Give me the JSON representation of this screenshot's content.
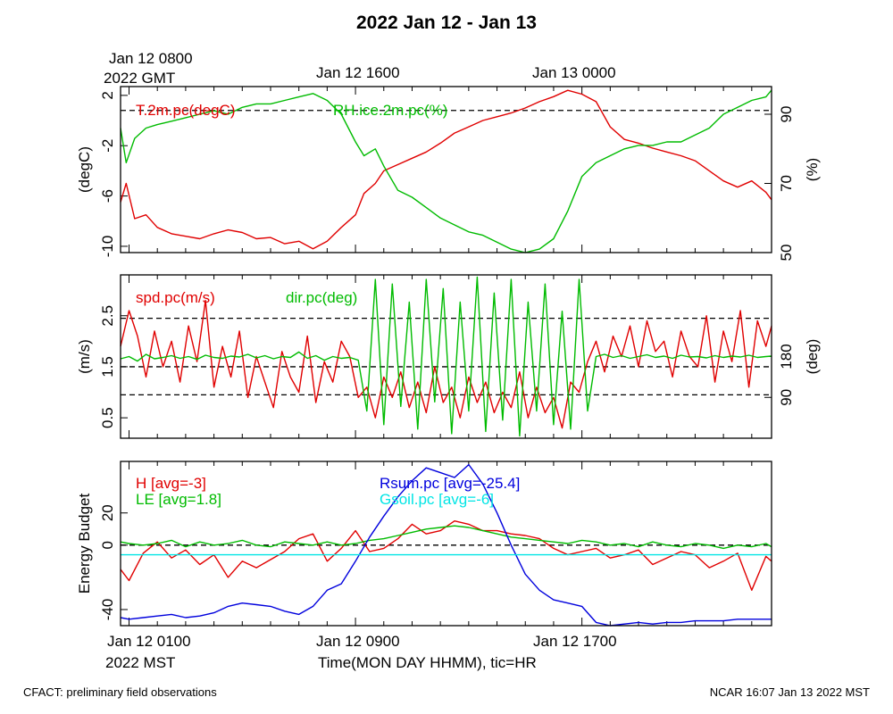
{
  "title": "2022 Jan 12 - Jan 13",
  "top_axis": {
    "first_label": "Jan 12 0800",
    "first_sublabel": "2022 GMT",
    "labels": [
      "Jan 12 1600",
      "Jan 13 0000"
    ]
  },
  "bottom_axis": {
    "labels": [
      "Jan 12 0100",
      "Jan 12 0900",
      "Jan 12 1700"
    ],
    "sublabel": "2022 MST",
    "xlabel": "Time(MON DAY HHMM), tic=HR"
  },
  "footer": {
    "left": "CFACT: preliminary field observations",
    "right": "NCAR 16:07 Jan 13 2022 MST"
  },
  "colors": {
    "red": "#e00000",
    "green": "#00bb00",
    "blue": "#0000dd",
    "cyan": "#00e5e5"
  },
  "chart_data": [
    {
      "type": "line",
      "title": "T.2m.pc / RH.ice.2m.pc",
      "x_unit": "hours since Jan 12 0000 MST",
      "xlim": [
        0.7,
        23.7
      ],
      "ylabel": "(degC)",
      "ylim": [
        -10.5,
        2.7
      ],
      "yticks": [
        -10,
        -6,
        -2,
        2
      ],
      "ylabel_right": "(%)",
      "ylim_right": [
        50,
        98
      ],
      "yticks_right": [
        50,
        70,
        90
      ],
      "reference_lines_left": [
        0.8
      ],
      "series": [
        {
          "name": "T.2m.pc(degC)",
          "label": "T.2m.pc(degC)",
          "color": "#e00000",
          "axis": "left",
          "x": [
            0.7,
            0.9,
            1.2,
            1.6,
            2.0,
            2.5,
            3.0,
            3.5,
            4.0,
            4.5,
            5.0,
            5.5,
            6.0,
            6.5,
            7.0,
            7.5,
            8.0,
            8.5,
            9.0,
            9.3,
            9.7,
            10.0,
            10.5,
            11.0,
            11.5,
            12.0,
            12.5,
            13.0,
            13.5,
            14.0,
            14.5,
            15.0,
            15.5,
            16.0,
            16.5,
            17.0,
            17.5,
            18.0,
            18.5,
            19.0,
            19.5,
            20.0,
            20.5,
            21.0,
            21.5,
            22.0,
            22.5,
            23.0,
            23.5,
            23.7
          ],
          "values": [
            -6.5,
            -5.0,
            -7.8,
            -7.5,
            -8.5,
            -9.0,
            -9.2,
            -9.4,
            -9.0,
            -8.7,
            -8.9,
            -9.4,
            -9.3,
            -9.8,
            -9.6,
            -10.2,
            -9.6,
            -8.5,
            -7.5,
            -5.8,
            -5.0,
            -4.0,
            -3.5,
            -3.0,
            -2.5,
            -1.8,
            -1.0,
            -0.5,
            0.0,
            0.3,
            0.6,
            1.0,
            1.5,
            1.9,
            2.4,
            2.1,
            1.5,
            -0.5,
            -1.5,
            -1.8,
            -2.2,
            -2.5,
            -2.8,
            -3.2,
            -4.0,
            -4.8,
            -5.3,
            -4.8,
            -5.7,
            -6.3
          ]
        },
        {
          "name": "RH.ice.2m.pc(%)",
          "label": "RH.ice.2m.pc(%)",
          "color": "#00bb00",
          "axis": "right",
          "x": [
            0.7,
            0.9,
            1.2,
            1.6,
            2.0,
            2.5,
            3.0,
            3.5,
            4.0,
            4.5,
            5.0,
            5.5,
            6.0,
            6.5,
            7.0,
            7.5,
            8.0,
            8.5,
            9.0,
            9.3,
            9.7,
            10.0,
            10.5,
            11.0,
            11.5,
            12.0,
            12.5,
            13.0,
            13.5,
            14.0,
            14.5,
            15.0,
            15.5,
            16.0,
            16.5,
            17.0,
            17.5,
            18.0,
            18.5,
            19.0,
            19.5,
            20.0,
            20.5,
            21.0,
            21.5,
            22.0,
            22.5,
            23.0,
            23.5,
            23.7
          ],
          "values": [
            86,
            76,
            83,
            86,
            87,
            88,
            89,
            90,
            91,
            90,
            92,
            93,
            93,
            94,
            95,
            96,
            94,
            90,
            82,
            78,
            80,
            75,
            68,
            66,
            63,
            60,
            58,
            56,
            55,
            53,
            51,
            50,
            51,
            54,
            62,
            72,
            76,
            78,
            80,
            81,
            81,
            82,
            82,
            84,
            86,
            90,
            92,
            94,
            95,
            97
          ]
        }
      ]
    },
    {
      "type": "line",
      "title": "spd.pc / dir.pc",
      "x_unit": "hours since Jan 12 0000 MST",
      "xlim": [
        0.7,
        23.7
      ],
      "ylabel": "(m/s)",
      "ylim": [
        0.1,
        3.3
      ],
      "yticks": [
        0.5,
        1.5,
        2.5
      ],
      "ylabel_right": "(deg)",
      "ylim_right": [
        0,
        360
      ],
      "yticks_right": [
        90,
        180
      ],
      "reference_lines_left": [
        0.95,
        1.5,
        2.45
      ],
      "series": [
        {
          "name": "spd.pc(m/s)",
          "label": "spd.pc(m/s)",
          "color": "#e00000",
          "axis": "left",
          "x": [
            0.7,
            1.0,
            1.3,
            1.6,
            1.9,
            2.2,
            2.5,
            2.8,
            3.1,
            3.4,
            3.7,
            4.0,
            4.3,
            4.6,
            4.9,
            5.2,
            5.5,
            5.8,
            6.1,
            6.4,
            6.7,
            7.0,
            7.3,
            7.6,
            7.9,
            8.2,
            8.5,
            8.8,
            9.1,
            9.4,
            9.7,
            10.0,
            10.3,
            10.6,
            10.9,
            11.2,
            11.5,
            11.8,
            12.1,
            12.4,
            12.7,
            13.0,
            13.3,
            13.6,
            13.9,
            14.2,
            14.5,
            14.8,
            15.1,
            15.4,
            15.7,
            16.0,
            16.3,
            16.6,
            16.9,
            17.2,
            17.5,
            17.8,
            18.1,
            18.4,
            18.7,
            19.0,
            19.3,
            19.6,
            19.9,
            20.2,
            20.5,
            20.8,
            21.1,
            21.4,
            21.7,
            22.0,
            22.3,
            22.6,
            22.9,
            23.2,
            23.5,
            23.7
          ],
          "values": [
            1.9,
            2.6,
            2.1,
            1.3,
            2.2,
            1.5,
            2.0,
            1.2,
            2.3,
            1.6,
            2.8,
            1.1,
            1.9,
            1.3,
            2.2,
            0.9,
            1.7,
            1.2,
            0.7,
            1.8,
            1.3,
            1.0,
            2.1,
            0.8,
            1.6,
            1.2,
            2.0,
            1.7,
            0.9,
            1.1,
            0.5,
            1.3,
            0.9,
            1.4,
            0.7,
            1.2,
            0.6,
            1.5,
            0.8,
            1.1,
            0.5,
            1.3,
            0.8,
            1.2,
            0.6,
            1.0,
            0.7,
            1.4,
            0.5,
            1.1,
            0.6,
            0.9,
            0.3,
            1.2,
            1.0,
            1.6,
            2.0,
            1.4,
            2.1,
            1.7,
            2.3,
            1.5,
            2.4,
            1.8,
            2.0,
            1.3,
            2.2,
            1.7,
            1.5,
            2.5,
            1.2,
            2.2,
            1.6,
            2.6,
            1.1,
            2.4,
            1.9,
            2.3
          ]
        },
        {
          "name": "dir.pc(deg)",
          "label": "dir.pc(deg)",
          "color": "#00bb00",
          "axis": "right",
          "x": [
            0.7,
            1.0,
            1.3,
            1.6,
            1.9,
            2.2,
            2.5,
            2.8,
            3.1,
            3.4,
            3.7,
            4.0,
            4.3,
            4.6,
            4.9,
            5.2,
            5.5,
            5.8,
            6.1,
            6.4,
            6.7,
            7.0,
            7.3,
            7.6,
            7.9,
            8.2,
            8.5,
            8.8,
            9.1,
            9.4,
            9.7,
            10.0,
            10.3,
            10.6,
            10.9,
            11.2,
            11.5,
            11.8,
            12.1,
            12.4,
            12.7,
            13.0,
            13.3,
            13.6,
            13.9,
            14.2,
            14.5,
            14.8,
            15.1,
            15.4,
            15.7,
            16.0,
            16.3,
            16.6,
            16.9,
            17.2,
            17.5,
            17.8,
            18.1,
            18.4,
            18.7,
            19.0,
            19.3,
            19.6,
            19.9,
            20.2,
            20.5,
            20.8,
            21.1,
            21.4,
            21.7,
            22.0,
            22.3,
            22.6,
            22.9,
            23.2,
            23.5,
            23.7
          ],
          "values": [
            175,
            180,
            170,
            185,
            175,
            178,
            182,
            176,
            180,
            174,
            183,
            178,
            176,
            181,
            179,
            185,
            177,
            182,
            175,
            180,
            178,
            190,
            176,
            182,
            172,
            180,
            176,
            178,
            172,
            60,
            350,
            30,
            340,
            70,
            300,
            20,
            350,
            80,
            330,
            10,
            300,
            60,
            355,
            15,
            320,
            40,
            350,
            5,
            300,
            60,
            340,
            30,
            280,
            20,
            350,
            60,
            180,
            185,
            178,
            182,
            176,
            180,
            184,
            178,
            181,
            176,
            183,
            179,
            180,
            177,
            182,
            178,
            181,
            179,
            183,
            178,
            180,
            181
          ]
        }
      ]
    },
    {
      "type": "line",
      "title": "Energy Budget",
      "x_unit": "hours since Jan 12 0000 MST",
      "xlim": [
        0.7,
        23.7
      ],
      "ylabel": "Energy Budget",
      "ylim": [
        -50,
        52
      ],
      "yticks": [
        -40,
        0,
        20
      ],
      "reference_lines_left": [
        0
      ],
      "series": [
        {
          "name": "H",
          "label": "H [avg=-3]",
          "color": "#e00000",
          "axis": "left",
          "x": [
            0.7,
            1.0,
            1.5,
            2.0,
            2.5,
            3.0,
            3.5,
            4.0,
            4.5,
            5.0,
            5.5,
            6.0,
            6.5,
            7.0,
            7.5,
            8.0,
            8.5,
            9.0,
            9.5,
            10.0,
            10.5,
            11.0,
            11.5,
            12.0,
            12.5,
            13.0,
            13.5,
            14.0,
            14.5,
            15.0,
            15.5,
            16.0,
            16.5,
            17.0,
            17.5,
            18.0,
            18.5,
            19.0,
            19.5,
            20.0,
            20.5,
            21.0,
            21.5,
            22.0,
            22.5,
            23.0,
            23.5,
            23.7
          ],
          "values": [
            -15,
            -22,
            -5,
            2,
            -8,
            -3,
            -12,
            -6,
            -20,
            -10,
            -14,
            -9,
            -4,
            4,
            7,
            -10,
            -2,
            9,
            -4,
            -2,
            4,
            13,
            7,
            9,
            15,
            13,
            9,
            9,
            7,
            6,
            4,
            -2,
            -6,
            -4,
            -2,
            -8,
            -6,
            -3,
            -12,
            -8,
            -4,
            -6,
            -14,
            -10,
            -5,
            -28,
            -7,
            -10
          ]
        },
        {
          "name": "LE",
          "label": "LE [avg=1.8]",
          "color": "#00bb00",
          "axis": "left",
          "x": [
            0.7,
            1.0,
            1.5,
            2.0,
            2.5,
            3.0,
            3.5,
            4.0,
            4.5,
            5.0,
            5.5,
            6.0,
            6.5,
            7.0,
            7.5,
            8.0,
            8.5,
            9.0,
            9.5,
            10.0,
            10.5,
            11.0,
            11.5,
            12.0,
            12.5,
            13.0,
            13.5,
            14.0,
            14.5,
            15.0,
            15.5,
            16.0,
            16.5,
            17.0,
            17.5,
            18.0,
            18.5,
            19.0,
            19.5,
            20.0,
            20.5,
            21.0,
            21.5,
            22.0,
            22.5,
            23.0,
            23.5,
            23.7
          ],
          "values": [
            2,
            1,
            0,
            1,
            3,
            -1,
            2,
            0,
            1,
            3,
            0,
            -1,
            2,
            1,
            0,
            2,
            0,
            1,
            3,
            4,
            6,
            8,
            10,
            11,
            12,
            11,
            9,
            7,
            5,
            4,
            3,
            2,
            1,
            3,
            2,
            0,
            1,
            -1,
            2,
            0,
            -1,
            1,
            0,
            -2,
            0,
            -1,
            1,
            -1
          ]
        },
        {
          "name": "Rsum.pc",
          "label": "Rsum.pc [avg=-25.4]",
          "color": "#0000dd",
          "axis": "left",
          "x": [
            0.7,
            1.0,
            1.5,
            2.0,
            2.5,
            3.0,
            3.5,
            4.0,
            4.5,
            5.0,
            5.5,
            6.0,
            6.5,
            7.0,
            7.5,
            8.0,
            8.5,
            9.0,
            9.5,
            10.0,
            10.5,
            11.0,
            11.5,
            12.0,
            12.5,
            13.0,
            13.5,
            14.0,
            14.5,
            15.0,
            15.5,
            16.0,
            16.5,
            17.0,
            17.5,
            18.0,
            18.5,
            19.0,
            19.5,
            20.0,
            20.5,
            21.0,
            21.5,
            22.0,
            22.5,
            23.0,
            23.5,
            23.7
          ],
          "values": [
            -45,
            -46,
            -45,
            -44,
            -43,
            -45,
            -44,
            -42,
            -38,
            -36,
            -37,
            -38,
            -41,
            -43,
            -38,
            -28,
            -24,
            -10,
            5,
            18,
            30,
            40,
            48,
            45,
            42,
            50,
            38,
            20,
            0,
            -18,
            -28,
            -34,
            -36,
            -38,
            -48,
            -50,
            -49,
            -48,
            -49,
            -48,
            -48,
            -47,
            -47,
            -47,
            -46,
            -46,
            -46,
            -46
          ]
        },
        {
          "name": "Gsoil.pc",
          "label": "Gsoil.pc [avg=-6]",
          "color": "#00e5e5",
          "axis": "left",
          "x": [
            0.7,
            23.7
          ],
          "values": [
            -6,
            -6
          ]
        }
      ]
    }
  ]
}
